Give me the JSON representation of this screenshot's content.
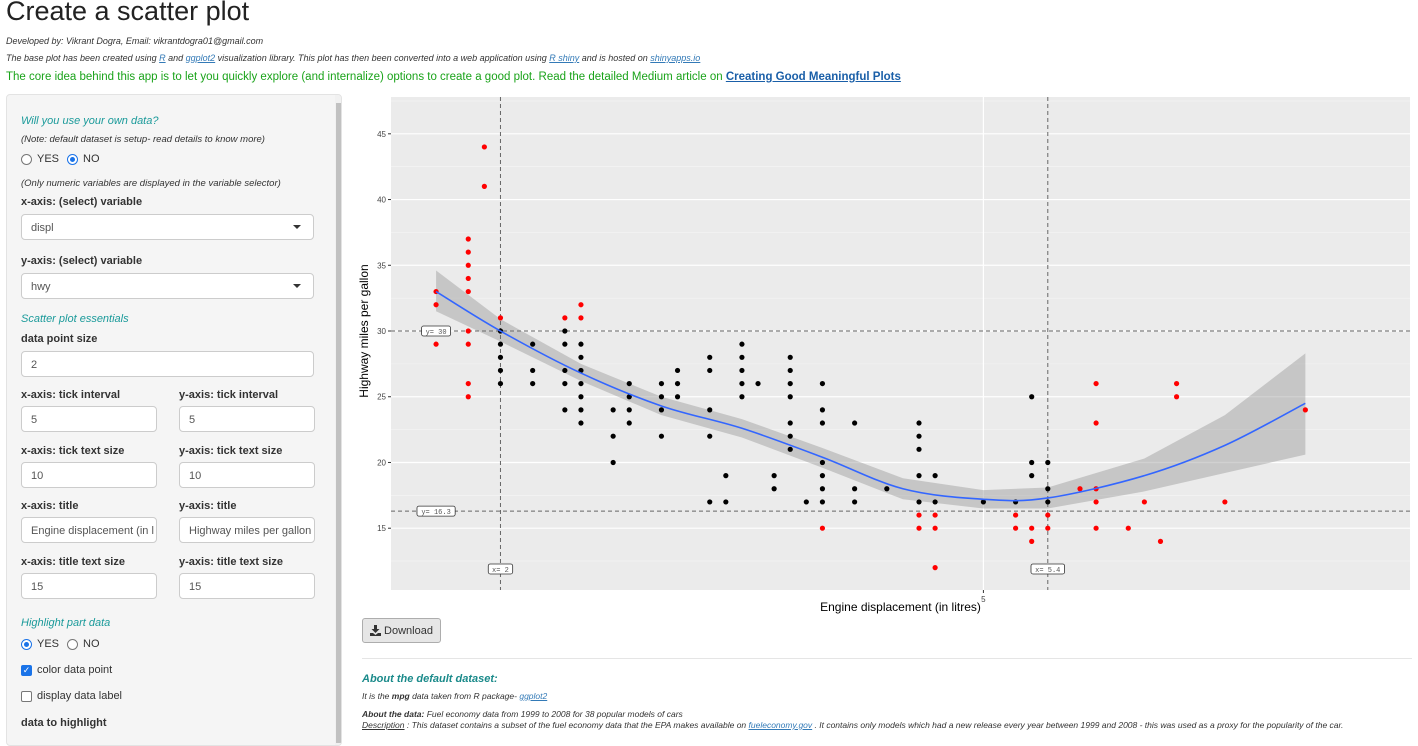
{
  "header": {
    "title": "Create a scatter plot",
    "developer": "Developed by: Vikrant Dogra, Email: vikrantdogra01@gmail.com",
    "base_text_1": "The base plot has been created using ",
    "link_r": "R",
    "base_text_2": " and ",
    "link_ggplot2": "ggplot2",
    "base_text_3": " visualization library. This plot has then been converted into a web application using ",
    "link_rshiny": "R shiny",
    "base_text_4": " and is hosted on ",
    "link_shinyapps": "shinyapps.io",
    "core_idea": "The core idea behind this app is to let you quickly explore (and internalize) options to create a good plot. Read the detailed Medium article on ",
    "link_article": "Creating Good Meaningful Plots"
  },
  "sidebar": {
    "own_data_title": "Will you use your own data?",
    "own_data_note": "(Note: default dataset is setup- read details to know more)",
    "own_data_options": [
      "YES",
      "NO"
    ],
    "own_data_selected": "NO",
    "numeric_note": "(Only numeric variables are displayed in the variable selector)",
    "x_var_label": "x-axis: (select) variable",
    "x_var_value": "displ",
    "y_var_label": "y-axis: (select) variable",
    "y_var_value": "hwy",
    "essentials_title": "Scatter plot essentials",
    "point_size_label": "data point size",
    "point_size_value": "2",
    "x_tick_interval_label": "x-axis: tick interval",
    "x_tick_interval_value": "5",
    "y_tick_interval_label": "y-axis: tick interval",
    "y_tick_interval_value": "5",
    "x_tick_size_label": "x-axis: tick text size",
    "x_tick_size_value": "10",
    "y_tick_size_label": "y-axis: tick text size",
    "y_tick_size_value": "10",
    "x_title_label": "x-axis: title",
    "x_title_value": "Engine displacement (in l",
    "y_title_label": "y-axis: title",
    "y_title_value": "Highway miles per gallon",
    "x_title_size_label": "x-axis: title text size",
    "x_title_size_value": "15",
    "y_title_size_label": "y-axis: title text size",
    "y_title_size_value": "15",
    "highlight_title": "Highlight part data",
    "highlight_options": [
      "YES",
      "NO"
    ],
    "highlight_selected": "YES",
    "color_point_label": "color data point",
    "color_point_checked": true,
    "display_label_label": "display data label",
    "display_label_checked": false,
    "data_to_highlight_label": "data to highlight"
  },
  "download_label": "Download",
  "about": {
    "title": "About the default dataset:",
    "line1_a": "It is the ",
    "line1_b": "mpg",
    "line1_c": " data taken from R package- ",
    "line1_link": "ggplot2",
    "data_label": "About the data:",
    "data_text": " Fuel economy data from 1999 to 2008 for 38 popular models of cars",
    "desc_label": "Description",
    "desc_text_1": " : This dataset contains a subset of the fuel economy data that the EPA makes available on ",
    "desc_link": "fueleconomy.gov",
    "desc_text_2": " . It contains only models which had a new release every year between 1999 and 2008 - this was used as a proxy for the popularity of the car."
  },
  "chart_data": {
    "type": "scatter",
    "xlabel": "Engine displacement (in litres)",
    "ylabel": "Highway miles per gallon",
    "xlim": [
      1.32,
      7.65
    ],
    "ylim": [
      10.3,
      47.8
    ],
    "x_ticks": [
      "5"
    ],
    "y_ticks": [
      "15",
      "20",
      "25",
      "30",
      "35",
      "40",
      "45"
    ],
    "grid": true,
    "colors": {
      "normal": "#000000",
      "highlight": "#ff0000",
      "smooth": "#3366ff",
      "panel": "#ebebeb"
    },
    "reference_lines": [
      {
        "axis": "y",
        "value": 30,
        "label": "y= 30"
      },
      {
        "axis": "y",
        "value": 16.3,
        "label": "y= 16.3"
      },
      {
        "axis": "x",
        "value": 2,
        "label": "x= 2"
      },
      {
        "axis": "x",
        "value": 5.4,
        "label": "x= 5.4"
      }
    ],
    "points_normal": [
      [
        2.0,
        30
      ],
      [
        2.0,
        29
      ],
      [
        2.0,
        28
      ],
      [
        2.0,
        27
      ],
      [
        2.0,
        26
      ],
      [
        2.2,
        29
      ],
      [
        2.2,
        27
      ],
      [
        2.2,
        26
      ],
      [
        2.4,
        30
      ],
      [
        2.4,
        29
      ],
      [
        2.4,
        27
      ],
      [
        2.4,
        26
      ],
      [
        2.4,
        24
      ],
      [
        2.5,
        29
      ],
      [
        2.5,
        28
      ],
      [
        2.5,
        27
      ],
      [
        2.5,
        26
      ],
      [
        2.5,
        25
      ],
      [
        2.5,
        24
      ],
      [
        2.5,
        23
      ],
      [
        2.7,
        24
      ],
      [
        2.7,
        22
      ],
      [
        2.7,
        20
      ],
      [
        2.8,
        26
      ],
      [
        2.8,
        25
      ],
      [
        2.8,
        24
      ],
      [
        2.8,
        23
      ],
      [
        3.0,
        26
      ],
      [
        3.0,
        25
      ],
      [
        3.0,
        24
      ],
      [
        3.0,
        22
      ],
      [
        3.1,
        27
      ],
      [
        3.1,
        26
      ],
      [
        3.1,
        25
      ],
      [
        3.3,
        28
      ],
      [
        3.3,
        27
      ],
      [
        3.3,
        24
      ],
      [
        3.3,
        22
      ],
      [
        3.3,
        17
      ],
      [
        3.4,
        19
      ],
      [
        3.4,
        17
      ],
      [
        3.5,
        29
      ],
      [
        3.5,
        28
      ],
      [
        3.5,
        27
      ],
      [
        3.5,
        26
      ],
      [
        3.5,
        25
      ],
      [
        3.6,
        26
      ],
      [
        3.7,
        19
      ],
      [
        3.7,
        18
      ],
      [
        3.8,
        28
      ],
      [
        3.8,
        27
      ],
      [
        3.8,
        26
      ],
      [
        3.8,
        25
      ],
      [
        3.8,
        23
      ],
      [
        3.8,
        22
      ],
      [
        3.8,
        21
      ],
      [
        3.9,
        17
      ],
      [
        4.0,
        26
      ],
      [
        4.0,
        24
      ],
      [
        4.0,
        23
      ],
      [
        4.0,
        20
      ],
      [
        4.0,
        19
      ],
      [
        4.0,
        18
      ],
      [
        4.0,
        17
      ],
      [
        4.2,
        23
      ],
      [
        4.2,
        18
      ],
      [
        4.2,
        17
      ],
      [
        4.4,
        18
      ],
      [
        4.6,
        23
      ],
      [
        4.6,
        22
      ],
      [
        4.6,
        21
      ],
      [
        4.6,
        19
      ],
      [
        4.6,
        17
      ],
      [
        4.7,
        19
      ],
      [
        4.7,
        17
      ],
      [
        5.0,
        17
      ],
      [
        5.2,
        17
      ],
      [
        5.3,
        25
      ],
      [
        5.3,
        20
      ],
      [
        5.3,
        19
      ],
      [
        5.4,
        20
      ],
      [
        5.4,
        18
      ],
      [
        5.4,
        17
      ]
    ],
    "points_highlight": [
      [
        1.6,
        33
      ],
      [
        1.6,
        32
      ],
      [
        1.6,
        29
      ],
      [
        1.8,
        37
      ],
      [
        1.8,
        36
      ],
      [
        1.8,
        35
      ],
      [
        1.8,
        34
      ],
      [
        1.8,
        33
      ],
      [
        1.8,
        30
      ],
      [
        1.8,
        29
      ],
      [
        1.8,
        26
      ],
      [
        1.8,
        25
      ],
      [
        1.9,
        44
      ],
      [
        1.9,
        41
      ],
      [
        2.0,
        31
      ],
      [
        2.4,
        31
      ],
      [
        2.5,
        32
      ],
      [
        2.5,
        31
      ],
      [
        4.0,
        15
      ],
      [
        4.6,
        16
      ],
      [
        4.6,
        15
      ],
      [
        4.7,
        16
      ],
      [
        4.7,
        15
      ],
      [
        4.7,
        12
      ],
      [
        5.2,
        16
      ],
      [
        5.2,
        15
      ],
      [
        5.3,
        15
      ],
      [
        5.3,
        14
      ],
      [
        5.4,
        16
      ],
      [
        5.4,
        15
      ],
      [
        5.6,
        18
      ],
      [
        5.7,
        26
      ],
      [
        5.7,
        23
      ],
      [
        5.7,
        18
      ],
      [
        5.7,
        17
      ],
      [
        5.7,
        15
      ],
      [
        5.9,
        15
      ],
      [
        6.0,
        17
      ],
      [
        6.1,
        14
      ],
      [
        6.2,
        26
      ],
      [
        6.2,
        25
      ],
      [
        6.5,
        17
      ],
      [
        7.0,
        24
      ]
    ],
    "smooth_fit": [
      [
        1.6,
        33
      ],
      [
        2.0,
        30
      ],
      [
        2.5,
        26.8
      ],
      [
        3.0,
        24.3
      ],
      [
        3.5,
        22.6
      ],
      [
        4.0,
        20.4
      ],
      [
        4.5,
        18.0
      ],
      [
        5.0,
        17.2
      ],
      [
        5.4,
        17.3
      ],
      [
        6.0,
        19
      ],
      [
        6.5,
        21.3
      ],
      [
        7.0,
        24.5
      ]
    ],
    "smooth_band": [
      [
        1.6,
        31.5,
        34.6
      ],
      [
        2.0,
        29.2,
        30.9
      ],
      [
        2.5,
        26.2,
        27.5
      ],
      [
        3.0,
        23.6,
        25.0
      ],
      [
        3.5,
        21.9,
        23.3
      ],
      [
        4.0,
        19.6,
        21.1
      ],
      [
        4.5,
        17.2,
        18.8
      ],
      [
        5.0,
        16.5,
        17.9
      ],
      [
        5.4,
        16.5,
        18.1
      ],
      [
        6.0,
        17.8,
        20.3
      ],
      [
        6.5,
        19.2,
        23.6
      ],
      [
        7.0,
        20.6,
        28.3
      ]
    ]
  }
}
